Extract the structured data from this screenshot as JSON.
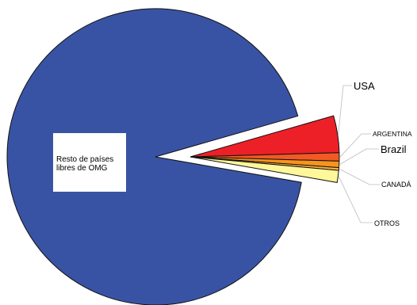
{
  "chart_data": {
    "type": "pie",
    "main": {
      "label_lines": [
        "Resto de países",
        "libres de OMG"
      ],
      "value": 92.8,
      "color": "#3953a4"
    },
    "exploded": [
      {
        "label": "USA",
        "value": 4.0,
        "color": "#ee2027"
      },
      {
        "label": "ARGENTINA",
        "value": 0.9,
        "color": "#f15a24"
      },
      {
        "label": "Brazil",
        "value": 0.7,
        "color": "#f7941d"
      },
      {
        "label": "CANADÁ",
        "value": 0.3,
        "color": "#fbb040"
      },
      {
        "label": "OTROS",
        "value": 1.3,
        "color": "#fff799"
      }
    ]
  }
}
